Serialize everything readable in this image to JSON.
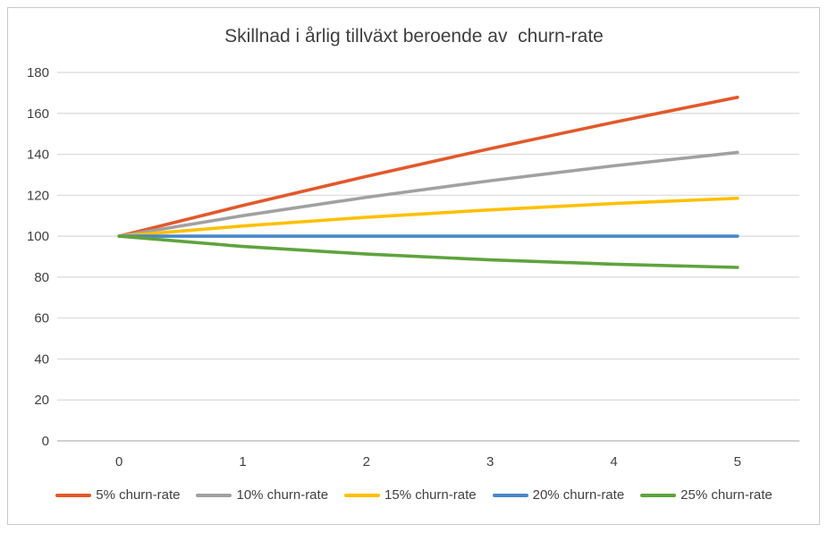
{
  "chart_data": {
    "type": "line",
    "title": "Skillnad i årlig tillväxt beroende av  churn-rate",
    "xlabel": "",
    "ylabel": "",
    "x": [
      0,
      1,
      2,
      3,
      4,
      5
    ],
    "xticks": [
      "0",
      "1",
      "2",
      "3",
      "4",
      "5"
    ],
    "yticks": [
      0,
      20,
      40,
      60,
      80,
      100,
      120,
      140,
      160,
      180
    ],
    "ylim": [
      0,
      180
    ],
    "grid": true,
    "legend_position": "bottom",
    "series": [
      {
        "name": "5% churn-rate",
        "color": "#E2592B",
        "values": [
          100,
          115,
          129.25,
          142.79,
          155.65,
          167.87
        ]
      },
      {
        "name": "10% churn-rate",
        "color": "#A1A1A1",
        "values": [
          100,
          110,
          119,
          127.1,
          134.39,
          140.95
        ]
      },
      {
        "name": "15% churn-rate",
        "color": "#FFC000",
        "values": [
          100,
          105,
          109.25,
          112.86,
          115.93,
          118.54
        ]
      },
      {
        "name": "20% churn-rate",
        "color": "#4A86C8",
        "values": [
          100,
          100,
          100,
          100,
          100,
          100
        ]
      },
      {
        "name": "25% churn-rate",
        "color": "#5FA33D",
        "values": [
          100,
          95,
          91.25,
          88.44,
          86.33,
          84.75
        ]
      }
    ],
    "colors": {
      "gridline": "#D9D9D9",
      "baseline_axis": "#C0C0C0",
      "frame_border": "#C9C9C9",
      "tick_label": "#404040",
      "title": "#3F3F3F"
    }
  }
}
